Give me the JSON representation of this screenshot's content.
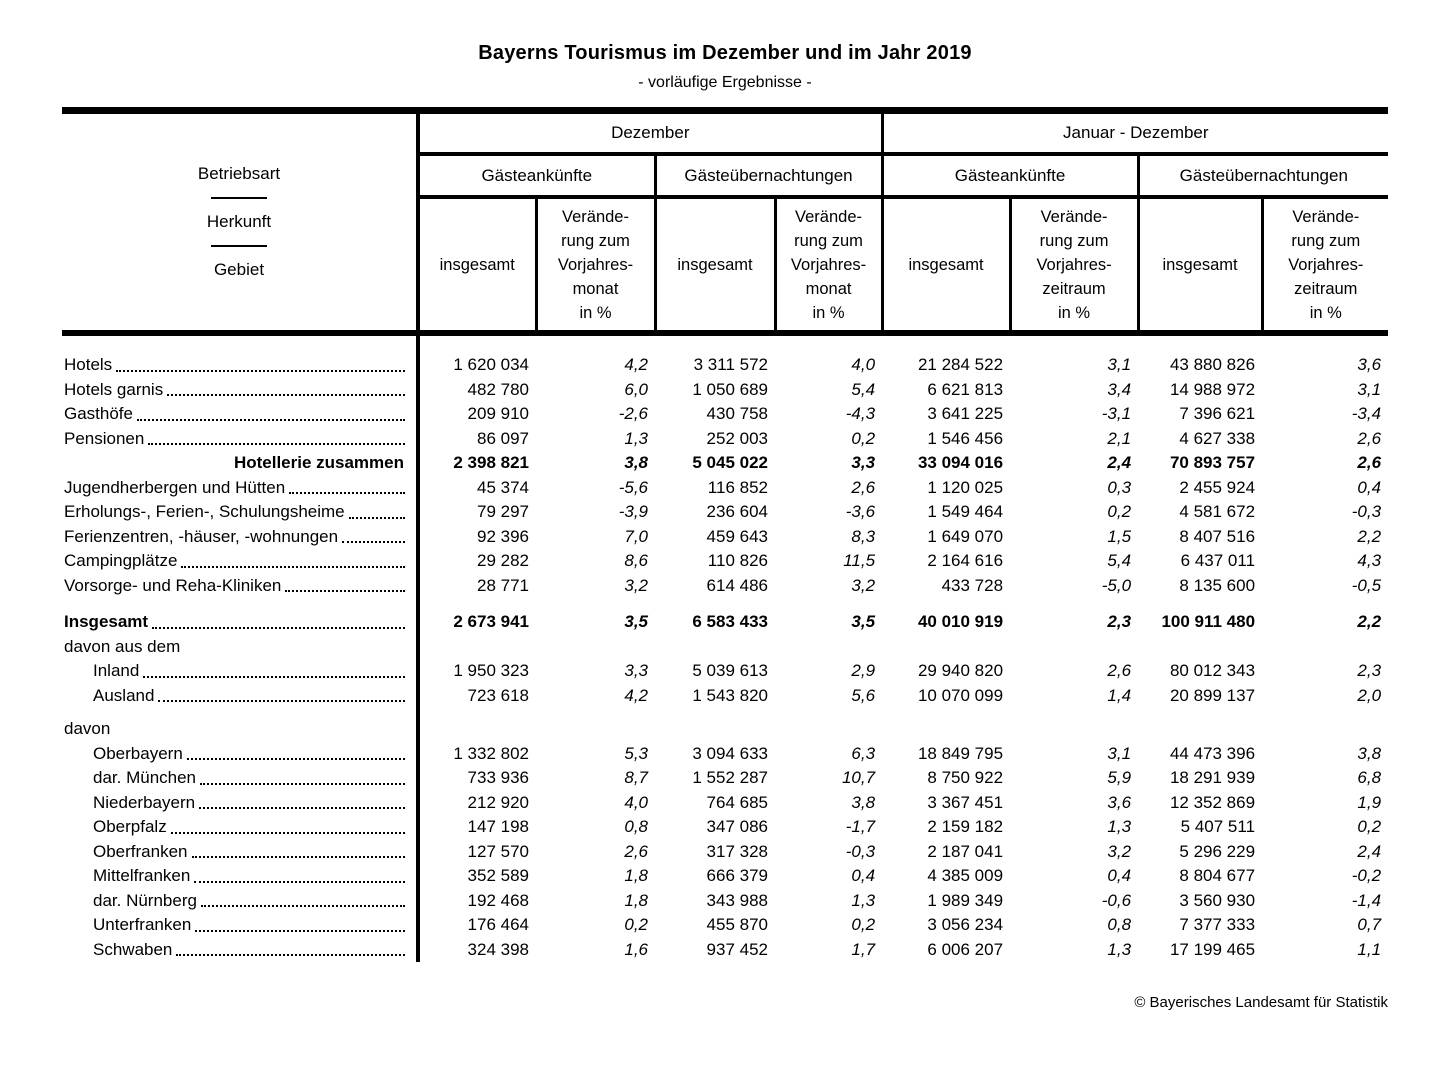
{
  "page": {
    "title": "Bayerns Tourismus im Dezember und im Jahr 2019",
    "subtitle": "- vorläufige Ergebnisse -",
    "copyright": "© Bayerisches Landesamt für Statistik"
  },
  "table": {
    "stub": {
      "line1": "Betriebsart",
      "line2": "Herkunft",
      "line3": "Gebiet"
    },
    "groups": [
      {
        "label": "Dezember",
        "subgroups": [
          {
            "label": "Gästeankünfte"
          },
          {
            "label": "Gästeübernachtungen"
          }
        ],
        "total_label": "insgesamt",
        "change_label": "Verände-\nrung zum\nVorjahres-\nmonat\nin %"
      },
      {
        "label": "Januar - Dezember",
        "subgroups": [
          {
            "label": "Gästeankünfte"
          },
          {
            "label": "Gästeübernachtungen"
          }
        ],
        "total_label": "insgesamt",
        "change_label": "Verände-\nrung zum\nVorjahres-\nzeitraum\nin %"
      }
    ],
    "rows": [
      {
        "type": "spacer",
        "height": 20
      },
      {
        "type": "leader",
        "label": "Hotels",
        "values": [
          "1 620 034",
          "4,2",
          "3 311 572",
          "4,0",
          "21 284 522",
          "3,1",
          "43 880 826",
          "3,6"
        ]
      },
      {
        "type": "leader",
        "label": "Hotels garnis",
        "values": [
          "482 780",
          "6,0",
          "1 050 689",
          "5,4",
          "6 621 813",
          "3,4",
          "14 988 972",
          "3,1"
        ]
      },
      {
        "type": "leader",
        "label": "Gasthöfe",
        "values": [
          "209 910",
          "-2,6",
          "430 758",
          "-4,3",
          "3 641 225",
          "-3,1",
          "7 396 621",
          "-3,4"
        ]
      },
      {
        "type": "leader",
        "label": "Pensionen",
        "values": [
          "86 097",
          "1,3",
          "252 003",
          "0,2",
          "1 546 456",
          "2,1",
          "4 627 338",
          "2,6"
        ]
      },
      {
        "type": "sum",
        "label": "Hotellerie zusammen",
        "bold": true,
        "values": [
          "2 398 821",
          "3,8",
          "5 045 022",
          "3,3",
          "33 094 016",
          "2,4",
          "70 893 757",
          "2,6"
        ]
      },
      {
        "type": "leader",
        "label": "Jugendherbergen und Hütten",
        "values": [
          "45 374",
          "-5,6",
          "116 852",
          "2,6",
          "1 120 025",
          "0,3",
          "2 455 924",
          "0,4"
        ]
      },
      {
        "type": "leader",
        "label": "Erholungs-, Ferien-, Schulungsheime",
        "values": [
          "79 297",
          "-3,9",
          "236 604",
          "-3,6",
          "1 549 464",
          "0,2",
          "4 581 672",
          "-0,3"
        ]
      },
      {
        "type": "leader",
        "label": "Ferienzentren, -häuser, -wohnungen",
        "values": [
          "92 396",
          "7,0",
          "459 643",
          "8,3",
          "1 649 070",
          "1,5",
          "8 407 516",
          "2,2"
        ]
      },
      {
        "type": "leader",
        "label": "Campingplätze",
        "values": [
          "29 282",
          "8,6",
          "110 826",
          "11,5",
          "2 164 616",
          "5,4",
          "6 437 011",
          "4,3"
        ]
      },
      {
        "type": "leader",
        "label": "Vorsorge- und Reha-Kliniken",
        "values": [
          "28 771",
          "3,2",
          "614 486",
          "3,2",
          "433 728",
          "-5,0",
          "8 135 600",
          "-0,5"
        ]
      },
      {
        "type": "spacer",
        "height": 12
      },
      {
        "type": "leader",
        "label": "Insgesamt",
        "bold": true,
        "values": [
          "2 673 941",
          "3,5",
          "6 583 433",
          "3,5",
          "40 010 919",
          "2,3",
          "100 911 480",
          "2,2"
        ]
      },
      {
        "type": "plain",
        "label": "davon aus dem",
        "values": null
      },
      {
        "type": "leader",
        "label": "Inland",
        "indent": true,
        "values": [
          "1 950 323",
          "3,3",
          "5 039 613",
          "2,9",
          "29 940 820",
          "2,6",
          "80 012 343",
          "2,3"
        ]
      },
      {
        "type": "leader",
        "label": "Ausland",
        "indent": true,
        "values": [
          "723 618",
          "4,2",
          "1 543 820",
          "5,6",
          "10 070 099",
          "1,4",
          "20 899 137",
          "2,0"
        ]
      },
      {
        "type": "spacer",
        "height": 9
      },
      {
        "type": "plain",
        "label": "davon",
        "values": null
      },
      {
        "type": "leader",
        "label": "Oberbayern",
        "indent": true,
        "values": [
          "1 332 802",
          "5,3",
          "3 094 633",
          "6,3",
          "18 849 795",
          "3,1",
          "44 473 396",
          "3,8"
        ]
      },
      {
        "type": "leader",
        "label": "dar. München",
        "indent": true,
        "values": [
          "733 936",
          "8,7",
          "1 552 287",
          "10,7",
          "8 750 922",
          "5,9",
          "18 291 939",
          "6,8"
        ]
      },
      {
        "type": "leader",
        "label": "Niederbayern",
        "indent": true,
        "values": [
          "212 920",
          "4,0",
          "764 685",
          "3,8",
          "3 367 451",
          "3,6",
          "12 352 869",
          "1,9"
        ]
      },
      {
        "type": "leader",
        "label": "Oberpfalz",
        "indent": true,
        "values": [
          "147 198",
          "0,8",
          "347 086",
          "-1,7",
          "2 159 182",
          "1,3",
          "5 407 511",
          "0,2"
        ]
      },
      {
        "type": "leader",
        "label": "Oberfranken",
        "indent": true,
        "values": [
          "127 570",
          "2,6",
          "317 328",
          "-0,3",
          "2 187 041",
          "3,2",
          "5 296 229",
          "2,4"
        ]
      },
      {
        "type": "leader",
        "label": "Mittelfranken",
        "indent": true,
        "values": [
          "352 589",
          "1,8",
          "666 379",
          "0,4",
          "4 385 009",
          "0,4",
          "8 804 677",
          "-0,2"
        ]
      },
      {
        "type": "leader",
        "label": "dar. Nürnberg",
        "indent": true,
        "values": [
          "192 468",
          "1,8",
          "343 988",
          "1,3",
          "1 989 349",
          "-0,6",
          "3 560 930",
          "-1,4"
        ]
      },
      {
        "type": "leader",
        "label": "Unterfranken",
        "indent": true,
        "values": [
          "176 464",
          "0,2",
          "455 870",
          "0,2",
          "3 056 234",
          "0,8",
          "7 377 333",
          "0,7"
        ]
      },
      {
        "type": "leader",
        "label": "Schwaben",
        "indent": true,
        "values": [
          "324 398",
          "1,6",
          "937 452",
          "1,7",
          "6 006 207",
          "1,3",
          "17 199 465",
          "1,1"
        ]
      }
    ]
  }
}
